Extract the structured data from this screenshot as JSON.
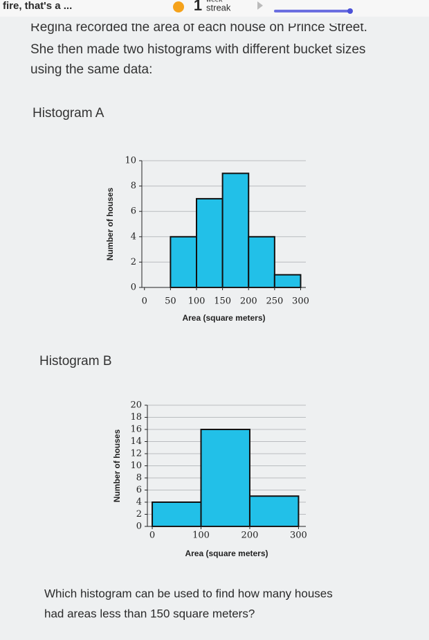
{
  "header": {
    "message": "fire, that's a ...",
    "streak_count": "1",
    "streak_unit_top": "week",
    "streak_unit": "streak"
  },
  "intro": [
    "Regina recorded the area of each house on Prince Street.",
    "She then made two histograms with different bucket sizes",
    "using the same data:"
  ],
  "chart_data": [
    {
      "type": "histogram",
      "title": "Histogram A",
      "xlabel": "Area (square meters)",
      "ylabel": "Number of houses",
      "bins": [
        0,
        50,
        100,
        150,
        200,
        250,
        300
      ],
      "values": [
        0,
        4,
        7,
        9,
        4,
        1
      ],
      "color": "#22c0e8",
      "xlim": [
        -5,
        310
      ],
      "xticks": [
        0,
        50,
        100,
        150,
        200,
        250,
        300
      ],
      "ylim": [
        0,
        10
      ],
      "yticks": [
        0,
        2,
        4,
        6,
        8,
        10
      ],
      "grid": true
    },
    {
      "type": "histogram",
      "title": "Histogram B",
      "xlabel": "Area (square meters)",
      "ylabel": "Number of houses",
      "bins": [
        0,
        100,
        200,
        300
      ],
      "values": [
        4,
        16,
        5
      ],
      "color": "#22c0e8",
      "xlim": [
        -10,
        315
      ],
      "xticks": [
        0,
        100,
        200,
        300
      ],
      "ylim": [
        0,
        20
      ],
      "yticks": [
        0,
        2,
        4,
        6,
        8,
        10,
        12,
        14,
        16,
        18,
        20
      ],
      "grid": true
    }
  ],
  "question": [
    "Which histogram can be used to find how many houses",
    "had areas less than 150 square meters?"
  ]
}
